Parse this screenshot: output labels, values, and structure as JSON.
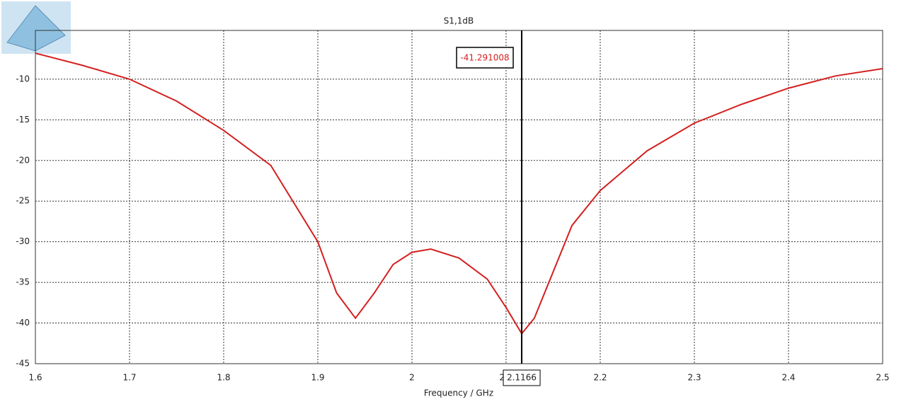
{
  "chart_data": {
    "type": "line",
    "title": "S1,1dB",
    "x_label": "Frequency / GHz",
    "xlim": [
      1.6,
      2.5
    ],
    "xticks": [
      1.6,
      1.7,
      1.8,
      1.9,
      2,
      2.1,
      2.2,
      2.3,
      2.4,
      2.5
    ],
    "ylim": [
      -45,
      -4
    ],
    "yticks": [
      -45,
      -40,
      -35,
      -30,
      -25,
      -20,
      -15,
      -10
    ],
    "grid": true,
    "series": [
      {
        "color": "#d42020",
        "x": [
          1.6,
          1.65,
          1.7,
          1.75,
          1.8,
          1.85,
          1.9,
          1.92,
          1.94,
          1.96,
          1.98,
          2.0,
          2.02,
          2.05,
          2.08,
          2.1,
          2.1166,
          2.13,
          2.15,
          2.17,
          2.2,
          2.25,
          2.3,
          2.35,
          2.4,
          2.45,
          2.5
        ],
        "values": [
          -6.8,
          -8.3,
          -10,
          -12.7,
          -16.3,
          -20.6,
          -30,
          -36.3,
          -39.4,
          -36.3,
          -32.8,
          -31.3,
          -30.9,
          -32,
          -34.6,
          -38.1,
          -41.3,
          -39.4,
          -33.7,
          -28,
          -23.7,
          -18.8,
          -15.4,
          -13.1,
          -11.1,
          -9.6,
          -8.7
        ]
      }
    ],
    "marker": {
      "x": 2.1166,
      "value": -41.291008
    }
  }
}
